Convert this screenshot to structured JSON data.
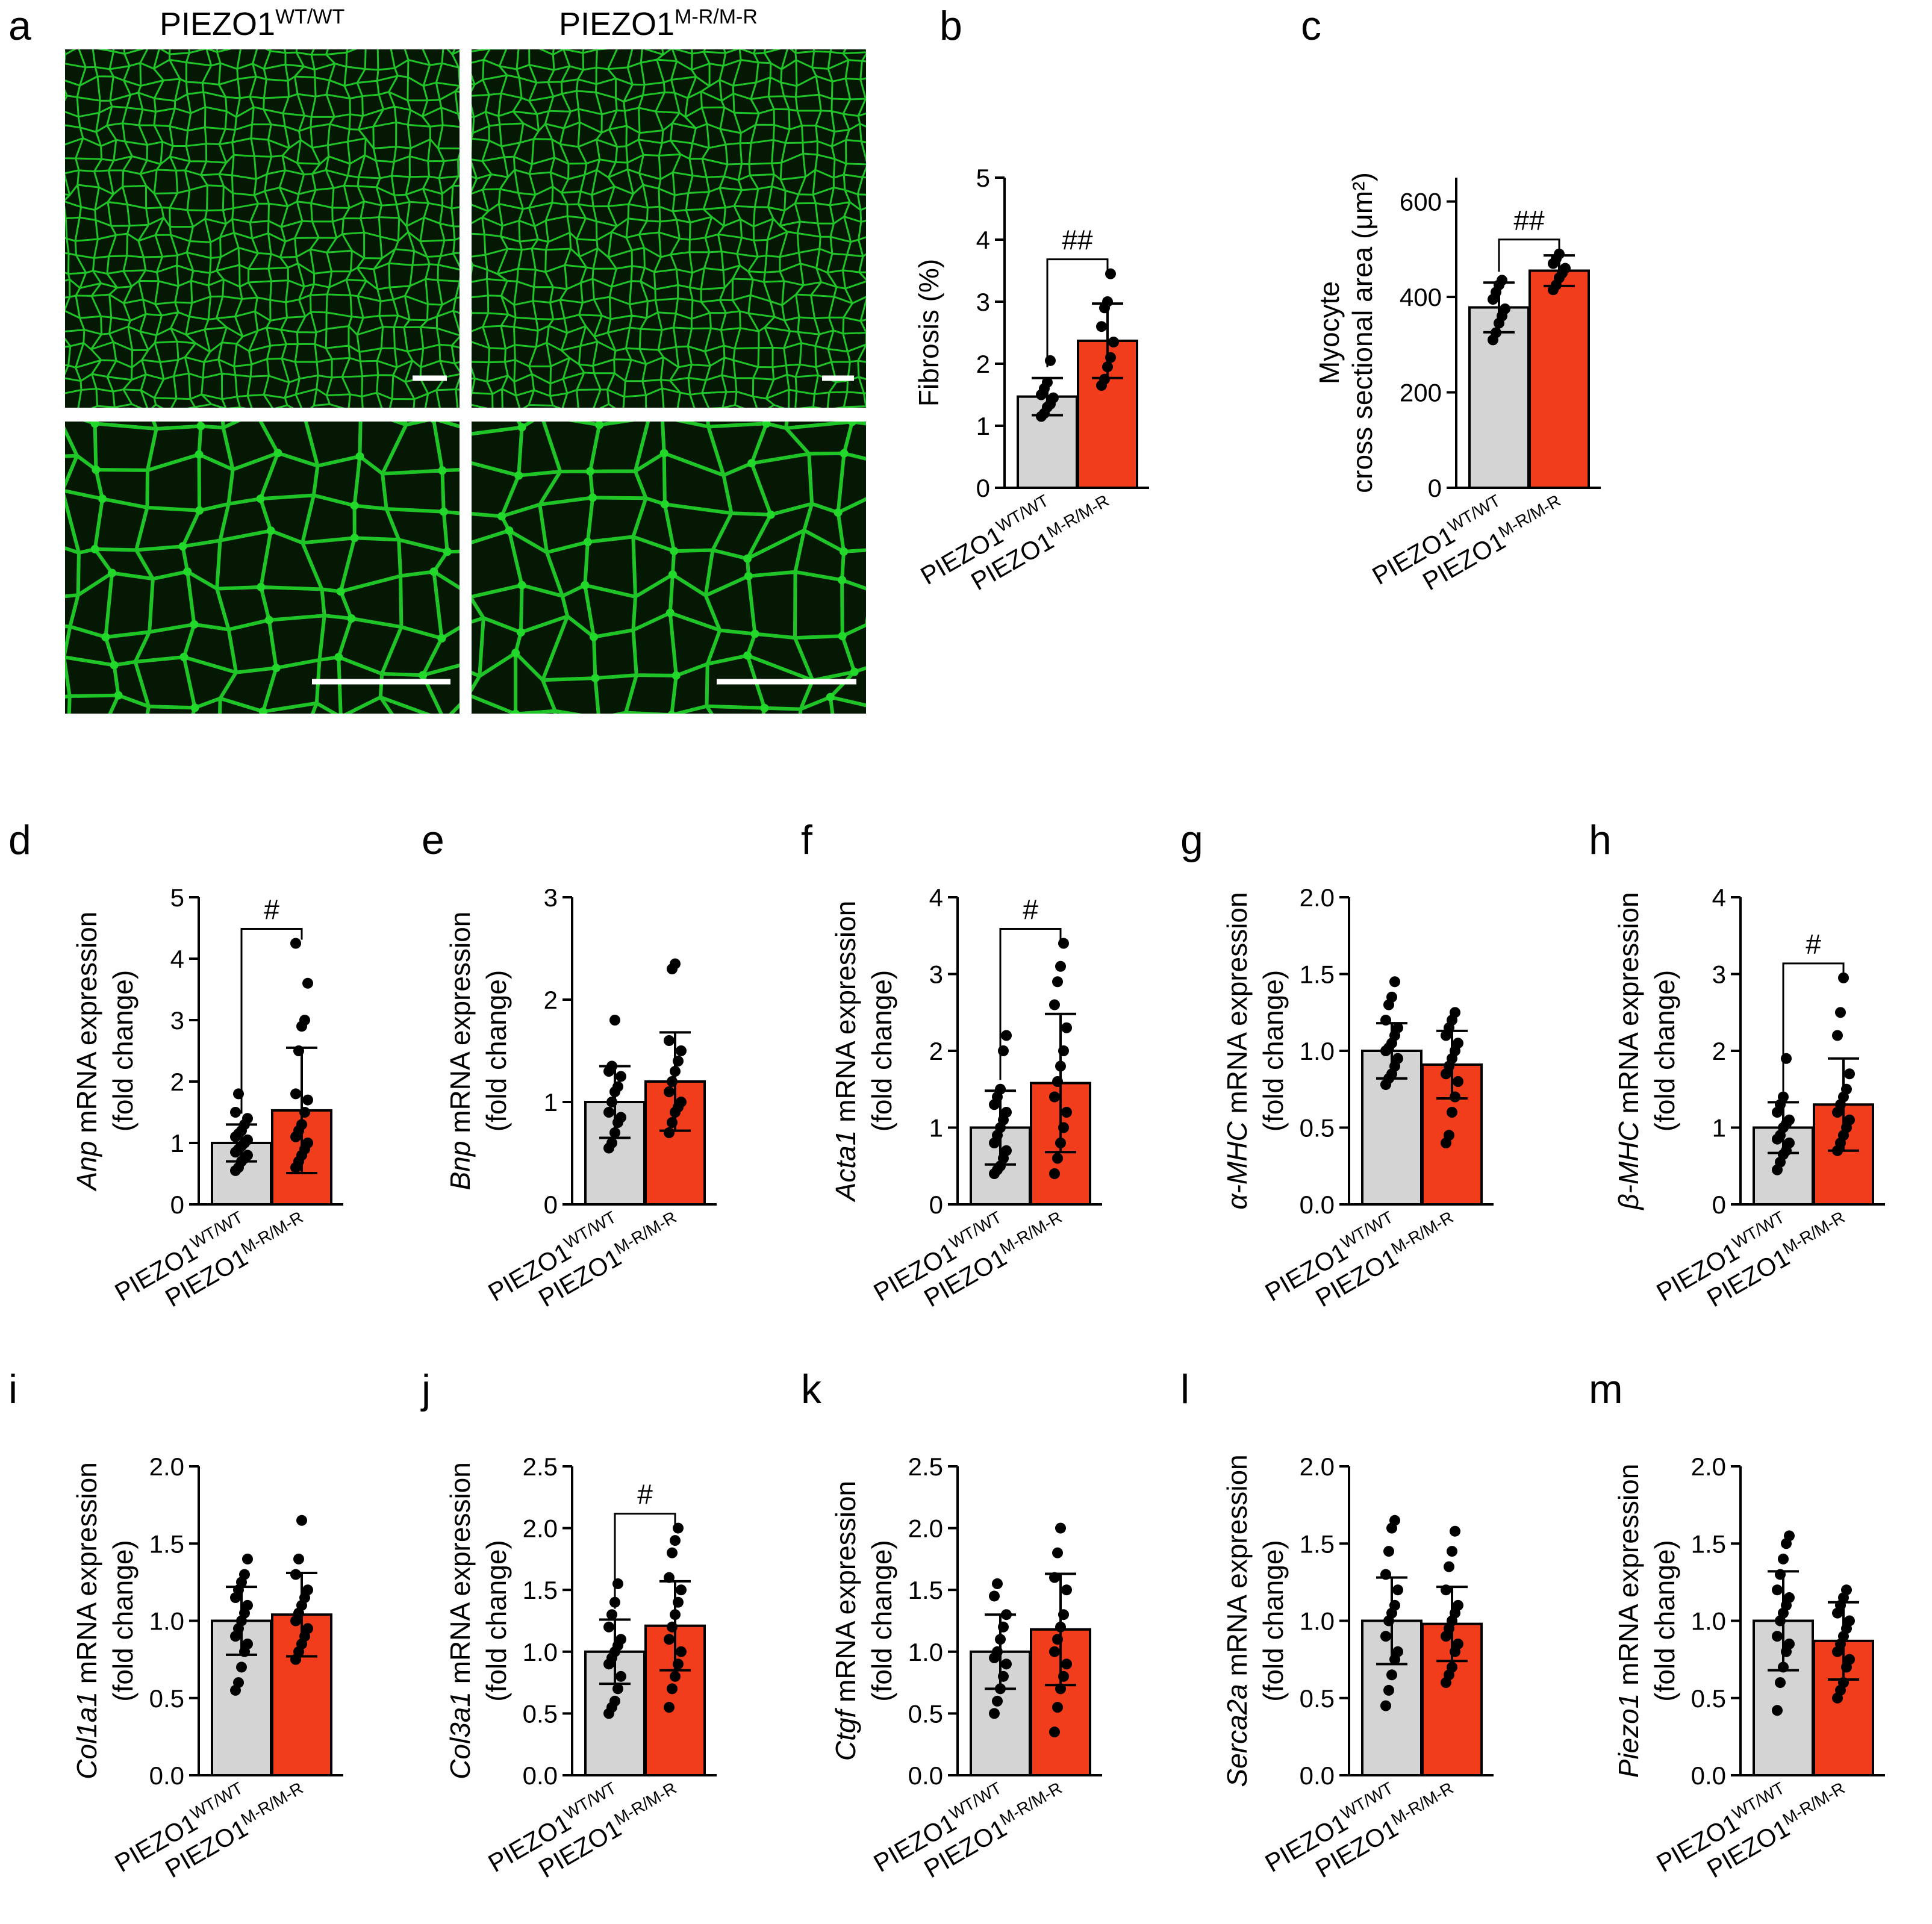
{
  "micrographs": {
    "panel_letter": "a",
    "col_titles": [
      {
        "base": "PIEZO1",
        "sup": "WT/WT"
      },
      {
        "base": "PIEZO1",
        "sup": "M-R/M-R"
      }
    ]
  },
  "colors": {
    "wt_bar": "#d4d4d4",
    "mr_bar": "#f23d1d",
    "micrograph_bg": "#041804",
    "micrograph_line": "#22d82a",
    "dots": "#000000"
  },
  "category_labels": [
    {
      "base": "PIEZO1",
      "sup": "WT/WT"
    },
    {
      "base": "PIEZO1",
      "sup": "M-R/M-R"
    }
  ],
  "chart_data": [
    {
      "panel": "b",
      "type": "bar",
      "ylabel": "Fibrosis (%)",
      "ylim": [
        0,
        5
      ],
      "yticks": [
        "0",
        "1",
        "2",
        "3",
        "4",
        "5"
      ],
      "sig": "##",
      "series": [
        {
          "values_mean": 1.47,
          "sd": 0.3,
          "points": [
            1.15,
            1.2,
            1.3,
            1.35,
            1.45,
            1.5,
            1.6,
            1.7,
            2.05
          ]
        },
        {
          "values_mean": 2.37,
          "sd": 0.6,
          "points": [
            1.65,
            1.75,
            1.95,
            2.1,
            2.35,
            2.6,
            2.9,
            3.0,
            3.45
          ]
        }
      ]
    },
    {
      "panel": "c",
      "type": "bar",
      "ylabel_lines": [
        "Myocyte",
        "cross sectional area (μm²)"
      ],
      "ylim": [
        0,
        650
      ],
      "yticks": [
        "0",
        "200",
        "400",
        "600"
      ],
      "ytick_values": [
        0,
        200,
        400,
        600
      ],
      "sig": "##",
      "series": [
        {
          "values_mean": 378,
          "sd": 52,
          "points": [
            310,
            325,
            345,
            360,
            375,
            395,
            410,
            425,
            435
          ]
        },
        {
          "values_mean": 455,
          "sd": 32,
          "points": [
            415,
            425,
            440,
            450,
            460,
            470,
            480,
            490
          ]
        }
      ]
    },
    {
      "panel": "d",
      "type": "bar",
      "gene": "Anp",
      "ylabel_rest": " mRNA expression",
      "ylabel2": "(fold change)",
      "ylim": [
        0,
        5
      ],
      "yticks": [
        "0",
        "1",
        "2",
        "3",
        "4",
        "5"
      ],
      "sig": "#",
      "series": [
        {
          "values_mean": 1.0,
          "sd": 0.3,
          "points": [
            0.55,
            0.6,
            0.7,
            0.75,
            0.8,
            0.85,
            0.9,
            0.95,
            1.0,
            1.05,
            1.1,
            1.15,
            1.2,
            1.3,
            1.4,
            1.5,
            1.8
          ]
        },
        {
          "values_mean": 1.53,
          "sd": 1.02,
          "points": [
            0.6,
            0.7,
            0.8,
            0.9,
            1.0,
            1.1,
            1.2,
            1.3,
            1.5,
            1.7,
            1.8,
            2.5,
            2.9,
            3.0,
            3.6,
            4.25
          ]
        }
      ]
    },
    {
      "panel": "e",
      "type": "bar",
      "gene": "Bnp",
      "ylabel_rest": " mRNA expression",
      "ylabel2": "(fold change)",
      "ylim": [
        0,
        3
      ],
      "yticks": [
        "0",
        "1",
        "2",
        "3"
      ],
      "sig": "",
      "series": [
        {
          "values_mean": 1.0,
          "sd": 0.35,
          "points": [
            0.55,
            0.6,
            0.7,
            0.8,
            0.85,
            0.9,
            1.0,
            1.1,
            1.15,
            1.25,
            1.3,
            1.35,
            1.8
          ]
        },
        {
          "values_mean": 1.2,
          "sd": 0.48,
          "points": [
            0.7,
            0.8,
            0.9,
            0.95,
            1.0,
            1.1,
            1.2,
            1.3,
            1.4,
            1.5,
            1.6,
            2.3,
            2.35
          ]
        }
      ]
    },
    {
      "panel": "f",
      "type": "bar",
      "gene": "Acta1",
      "ylabel_rest": " mRNA expression",
      "ylabel2": "(fold change)",
      "ylim": [
        0,
        4
      ],
      "yticks": [
        "0",
        "1",
        "2",
        "3",
        "4"
      ],
      "sig": "#",
      "series": [
        {
          "values_mean": 1.0,
          "sd": 0.48,
          "points": [
            0.4,
            0.45,
            0.5,
            0.6,
            0.7,
            0.8,
            0.9,
            1.0,
            1.1,
            1.2,
            1.3,
            1.4,
            1.5,
            2.0,
            2.2
          ]
        },
        {
          "values_mean": 1.58,
          "sd": 0.9,
          "points": [
            0.4,
            0.6,
            0.8,
            1.0,
            1.2,
            1.4,
            1.6,
            1.8,
            2.0,
            2.3,
            2.6,
            2.9,
            3.1,
            3.4
          ]
        }
      ]
    },
    {
      "panel": "g",
      "type": "bar",
      "gene": "α-MHC",
      "ylabel_rest": " mRNA expression",
      "ylabel2": "(fold change)",
      "ylim": [
        0,
        2
      ],
      "yticks": [
        "0.0",
        "0.5",
        "1.0",
        "1.5",
        "2.0"
      ],
      "ytick_values": [
        0,
        0.5,
        1.0,
        1.5,
        2.0
      ],
      "sig": "",
      "series": [
        {
          "values_mean": 1.0,
          "sd": 0.18,
          "points": [
            0.78,
            0.82,
            0.85,
            0.9,
            0.95,
            1.0,
            1.02,
            1.05,
            1.1,
            1.15,
            1.2,
            1.3,
            1.35,
            1.45
          ]
        },
        {
          "values_mean": 0.91,
          "sd": 0.22,
          "points": [
            0.4,
            0.45,
            0.6,
            0.7,
            0.8,
            0.85,
            0.9,
            0.95,
            1.0,
            1.05,
            1.1,
            1.15,
            1.2,
            1.25
          ]
        }
      ]
    },
    {
      "panel": "h",
      "type": "bar",
      "gene": "β-MHC",
      "ylabel_rest": " mRNA expression",
      "ylabel2": "(fold change)",
      "ylim": [
        0,
        4
      ],
      "yticks": [
        "0",
        "1",
        "2",
        "3",
        "4"
      ],
      "sig": "#",
      "series": [
        {
          "values_mean": 1.0,
          "sd": 0.33,
          "points": [
            0.45,
            0.55,
            0.65,
            0.7,
            0.8,
            0.85,
            0.9,
            1.0,
            1.05,
            1.1,
            1.2,
            1.3,
            1.4,
            1.9
          ]
        },
        {
          "values_mean": 1.3,
          "sd": 0.6,
          "points": [
            0.7,
            0.8,
            0.9,
            1.0,
            1.1,
            1.2,
            1.3,
            1.4,
            1.5,
            1.7,
            2.2,
            2.5,
            2.95
          ]
        }
      ]
    },
    {
      "panel": "i",
      "type": "bar",
      "gene": "Col1a1",
      "ylabel_rest": " mRNA expression",
      "ylabel2": "(fold change)",
      "ylim": [
        0,
        2
      ],
      "yticks": [
        "0.0",
        "0.5",
        "1.0",
        "1.5",
        "2.0"
      ],
      "ytick_values": [
        0,
        0.5,
        1.0,
        1.5,
        2.0
      ],
      "sig": "",
      "series": [
        {
          "values_mean": 1.0,
          "sd": 0.22,
          "points": [
            0.55,
            0.6,
            0.7,
            0.8,
            0.85,
            0.9,
            0.95,
            1.0,
            1.05,
            1.1,
            1.15,
            1.2,
            1.25,
            1.3,
            1.4
          ]
        },
        {
          "values_mean": 1.04,
          "sd": 0.27,
          "points": [
            0.75,
            0.8,
            0.85,
            0.9,
            0.95,
            1.0,
            1.05,
            1.1,
            1.15,
            1.2,
            1.3,
            1.4,
            1.65
          ]
        }
      ]
    },
    {
      "panel": "j",
      "type": "bar",
      "gene": "Col3a1",
      "ylabel_rest": " mRNA expression",
      "ylabel2": "(fold change)",
      "ylim": [
        0,
        2.5
      ],
      "yticks": [
        "0.0",
        "0.5",
        "1.0",
        "1.5",
        "2.0",
        "2.5"
      ],
      "ytick_values": [
        0,
        0.5,
        1.0,
        1.5,
        2.0,
        2.5
      ],
      "sig": "#",
      "series": [
        {
          "values_mean": 1.0,
          "sd": 0.26,
          "points": [
            0.5,
            0.55,
            0.6,
            0.7,
            0.8,
            0.9,
            0.95,
            1.0,
            1.05,
            1.1,
            1.2,
            1.3,
            1.4,
            1.55
          ]
        },
        {
          "values_mean": 1.21,
          "sd": 0.36,
          "points": [
            0.55,
            0.7,
            0.8,
            0.9,
            1.0,
            1.1,
            1.2,
            1.3,
            1.4,
            1.5,
            1.6,
            1.8,
            1.9,
            2.0
          ]
        }
      ]
    },
    {
      "panel": "k",
      "type": "bar",
      "gene": "Ctgf",
      "ylabel_rest": " mRNA expression",
      "ylabel2": "(fold change)",
      "ylim": [
        0,
        2.5
      ],
      "yticks": [
        "0.0",
        "0.5",
        "1.0",
        "1.5",
        "2.0",
        "2.5"
      ],
      "ytick_values": [
        0,
        0.5,
        1.0,
        1.5,
        2.0,
        2.5
      ],
      "sig": "",
      "series": [
        {
          "values_mean": 1.0,
          "sd": 0.3,
          "points": [
            0.5,
            0.6,
            0.7,
            0.8,
            0.9,
            0.95,
            1.0,
            1.1,
            1.2,
            1.3,
            1.45,
            1.55
          ]
        },
        {
          "values_mean": 1.18,
          "sd": 0.45,
          "points": [
            0.35,
            0.55,
            0.7,
            0.8,
            0.9,
            1.0,
            1.1,
            1.2,
            1.3,
            1.5,
            1.6,
            1.8,
            2.0
          ]
        }
      ]
    },
    {
      "panel": "l",
      "type": "bar",
      "gene": "Serca2a",
      "ylabel_rest": " mRNA expression",
      "ylabel2": "(fold change)",
      "ylim": [
        0,
        2
      ],
      "yticks": [
        "0.0",
        "0.5",
        "1.0",
        "1.5",
        "2.0"
      ],
      "ytick_values": [
        0,
        0.5,
        1.0,
        1.5,
        2.0
      ],
      "sig": "",
      "series": [
        {
          "values_mean": 1.0,
          "sd": 0.28,
          "points": [
            0.45,
            0.55,
            0.65,
            0.75,
            0.8,
            0.9,
            1.0,
            1.05,
            1.1,
            1.2,
            1.3,
            1.45,
            1.6,
            1.65
          ]
        },
        {
          "values_mean": 0.98,
          "sd": 0.24,
          "points": [
            0.6,
            0.65,
            0.7,
            0.8,
            0.85,
            0.9,
            0.95,
            1.0,
            1.05,
            1.1,
            1.2,
            1.35,
            1.45,
            1.58
          ]
        }
      ]
    },
    {
      "panel": "m",
      "type": "bar",
      "gene": "Piezo1",
      "ylabel_rest": " mRNA expression",
      "ylabel2": "(fold change)",
      "ylim": [
        0,
        2
      ],
      "yticks": [
        "0.0",
        "0.5",
        "1.0",
        "1.5",
        "2.0"
      ],
      "ytick_values": [
        0,
        0.5,
        1.0,
        1.5,
        2.0
      ],
      "sig": "",
      "series": [
        {
          "values_mean": 1.0,
          "sd": 0.32,
          "points": [
            0.42,
            0.6,
            0.7,
            0.8,
            0.85,
            0.9,
            1.0,
            1.05,
            1.1,
            1.15,
            1.2,
            1.3,
            1.4,
            1.5,
            1.55
          ]
        },
        {
          "values_mean": 0.87,
          "sd": 0.25,
          "points": [
            0.5,
            0.55,
            0.6,
            0.7,
            0.75,
            0.8,
            0.85,
            0.9,
            0.95,
            1.0,
            1.05,
            1.1,
            1.15,
            1.2
          ]
        }
      ]
    }
  ]
}
